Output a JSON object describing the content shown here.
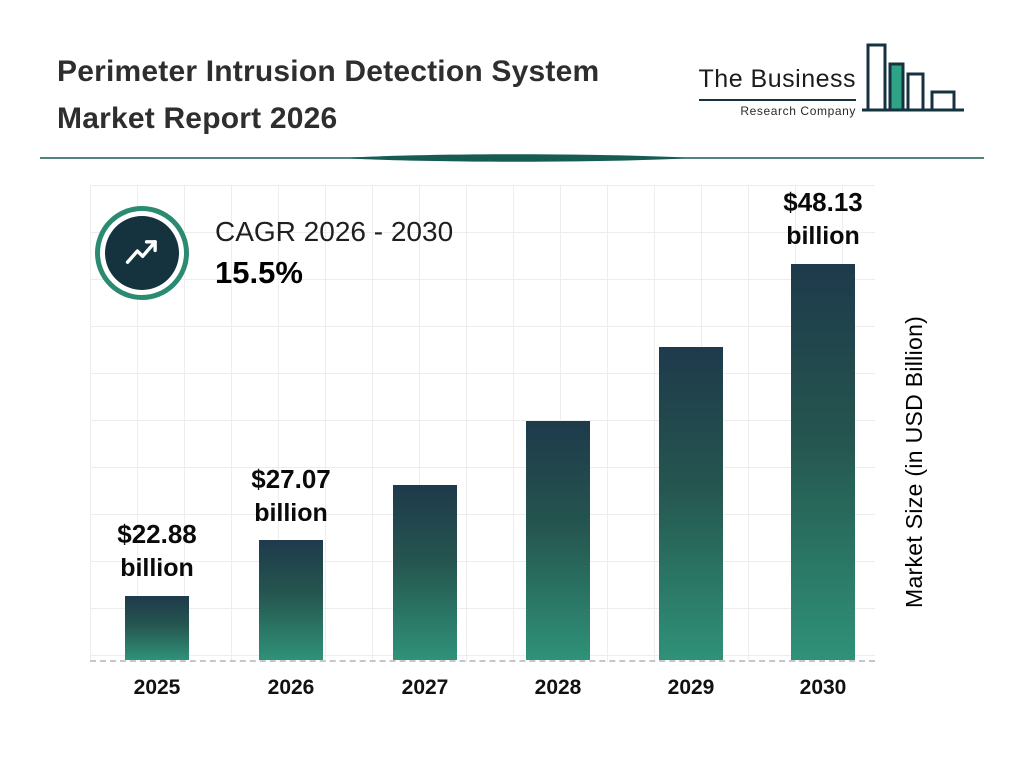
{
  "header": {
    "title_line1": "Perimeter Intrusion Detection System",
    "title_line2": "Market Report 2026",
    "logo": {
      "name_line": "The Business",
      "tagline": "Research Company"
    }
  },
  "cagr": {
    "label": "CAGR 2026 - 2030",
    "value": "15.5%"
  },
  "chart_data": {
    "type": "bar",
    "title": "Perimeter Intrusion Detection System Market Report 2026",
    "categories": [
      "2025",
      "2026",
      "2027",
      "2028",
      "2029",
      "2030"
    ],
    "values": [
      22.88,
      27.07,
      31.27,
      36.12,
      41.72,
      48.13
    ],
    "bar_labels": [
      {
        "amount": "$22.88",
        "unit": "billion"
      },
      {
        "amount": "$27.07",
        "unit": "billion"
      },
      null,
      null,
      null,
      {
        "amount": "$48.13",
        "unit": "billion"
      }
    ],
    "xlabel": "",
    "ylabel": "Market Size (in USD Billion)",
    "ylim": [
      18,
      54
    ],
    "grid": true,
    "legend": false
  },
  "colors": {
    "bar_gradient_top": "#1e3a4b",
    "bar_gradient_bottom": "#2f9278",
    "accent_teal": "#2fa386",
    "navy": "#14333f",
    "divider_teal": "#175c52",
    "cagr_ring": "#2b8a72"
  }
}
